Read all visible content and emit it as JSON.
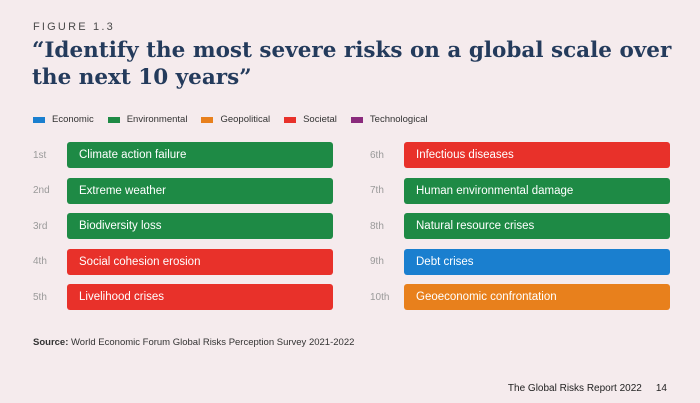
{
  "figure_label": "FIGURE 1.3",
  "title": "“Identify the most severe risks on a global scale over the next 10 years”",
  "legend": [
    {
      "label": "Economic",
      "color": "#1a7fcf"
    },
    {
      "label": "Environmental",
      "color": "#1e8a45"
    },
    {
      "label": "Geopolitical",
      "color": "#e8801c"
    },
    {
      "label": "Societal",
      "color": "#e8312a"
    },
    {
      "label": "Technological",
      "color": "#8a2a7c"
    }
  ],
  "risks_left": [
    {
      "rank": "1st",
      "label": "Climate action failure",
      "color": "#1e8a45"
    },
    {
      "rank": "2nd",
      "label": "Extreme weather",
      "color": "#1e8a45"
    },
    {
      "rank": "3rd",
      "label": "Biodiversity loss",
      "color": "#1e8a45"
    },
    {
      "rank": "4th",
      "label": "Social cohesion erosion",
      "color": "#e8312a"
    },
    {
      "rank": "5th",
      "label": "Livelihood crises",
      "color": "#e8312a"
    }
  ],
  "risks_right": [
    {
      "rank": "6th",
      "label": "Infectious diseases",
      "color": "#e8312a"
    },
    {
      "rank": "7th",
      "label": "Human environmental damage",
      "color": "#1e8a45"
    },
    {
      "rank": "8th",
      "label": "Natural resource crises",
      "color": "#1e8a45"
    },
    {
      "rank": "9th",
      "label": "Debt crises",
      "color": "#1a7fcf"
    },
    {
      "rank": "10th",
      "label": "Geoeconomic confrontation",
      "color": "#e8801c"
    }
  ],
  "source": {
    "prefix": "Source:",
    "text": " World Economic Forum Global Risks Perception Survey 2021-2022"
  },
  "footer": {
    "report": "The Global Risks Report 2022",
    "page": "14"
  }
}
